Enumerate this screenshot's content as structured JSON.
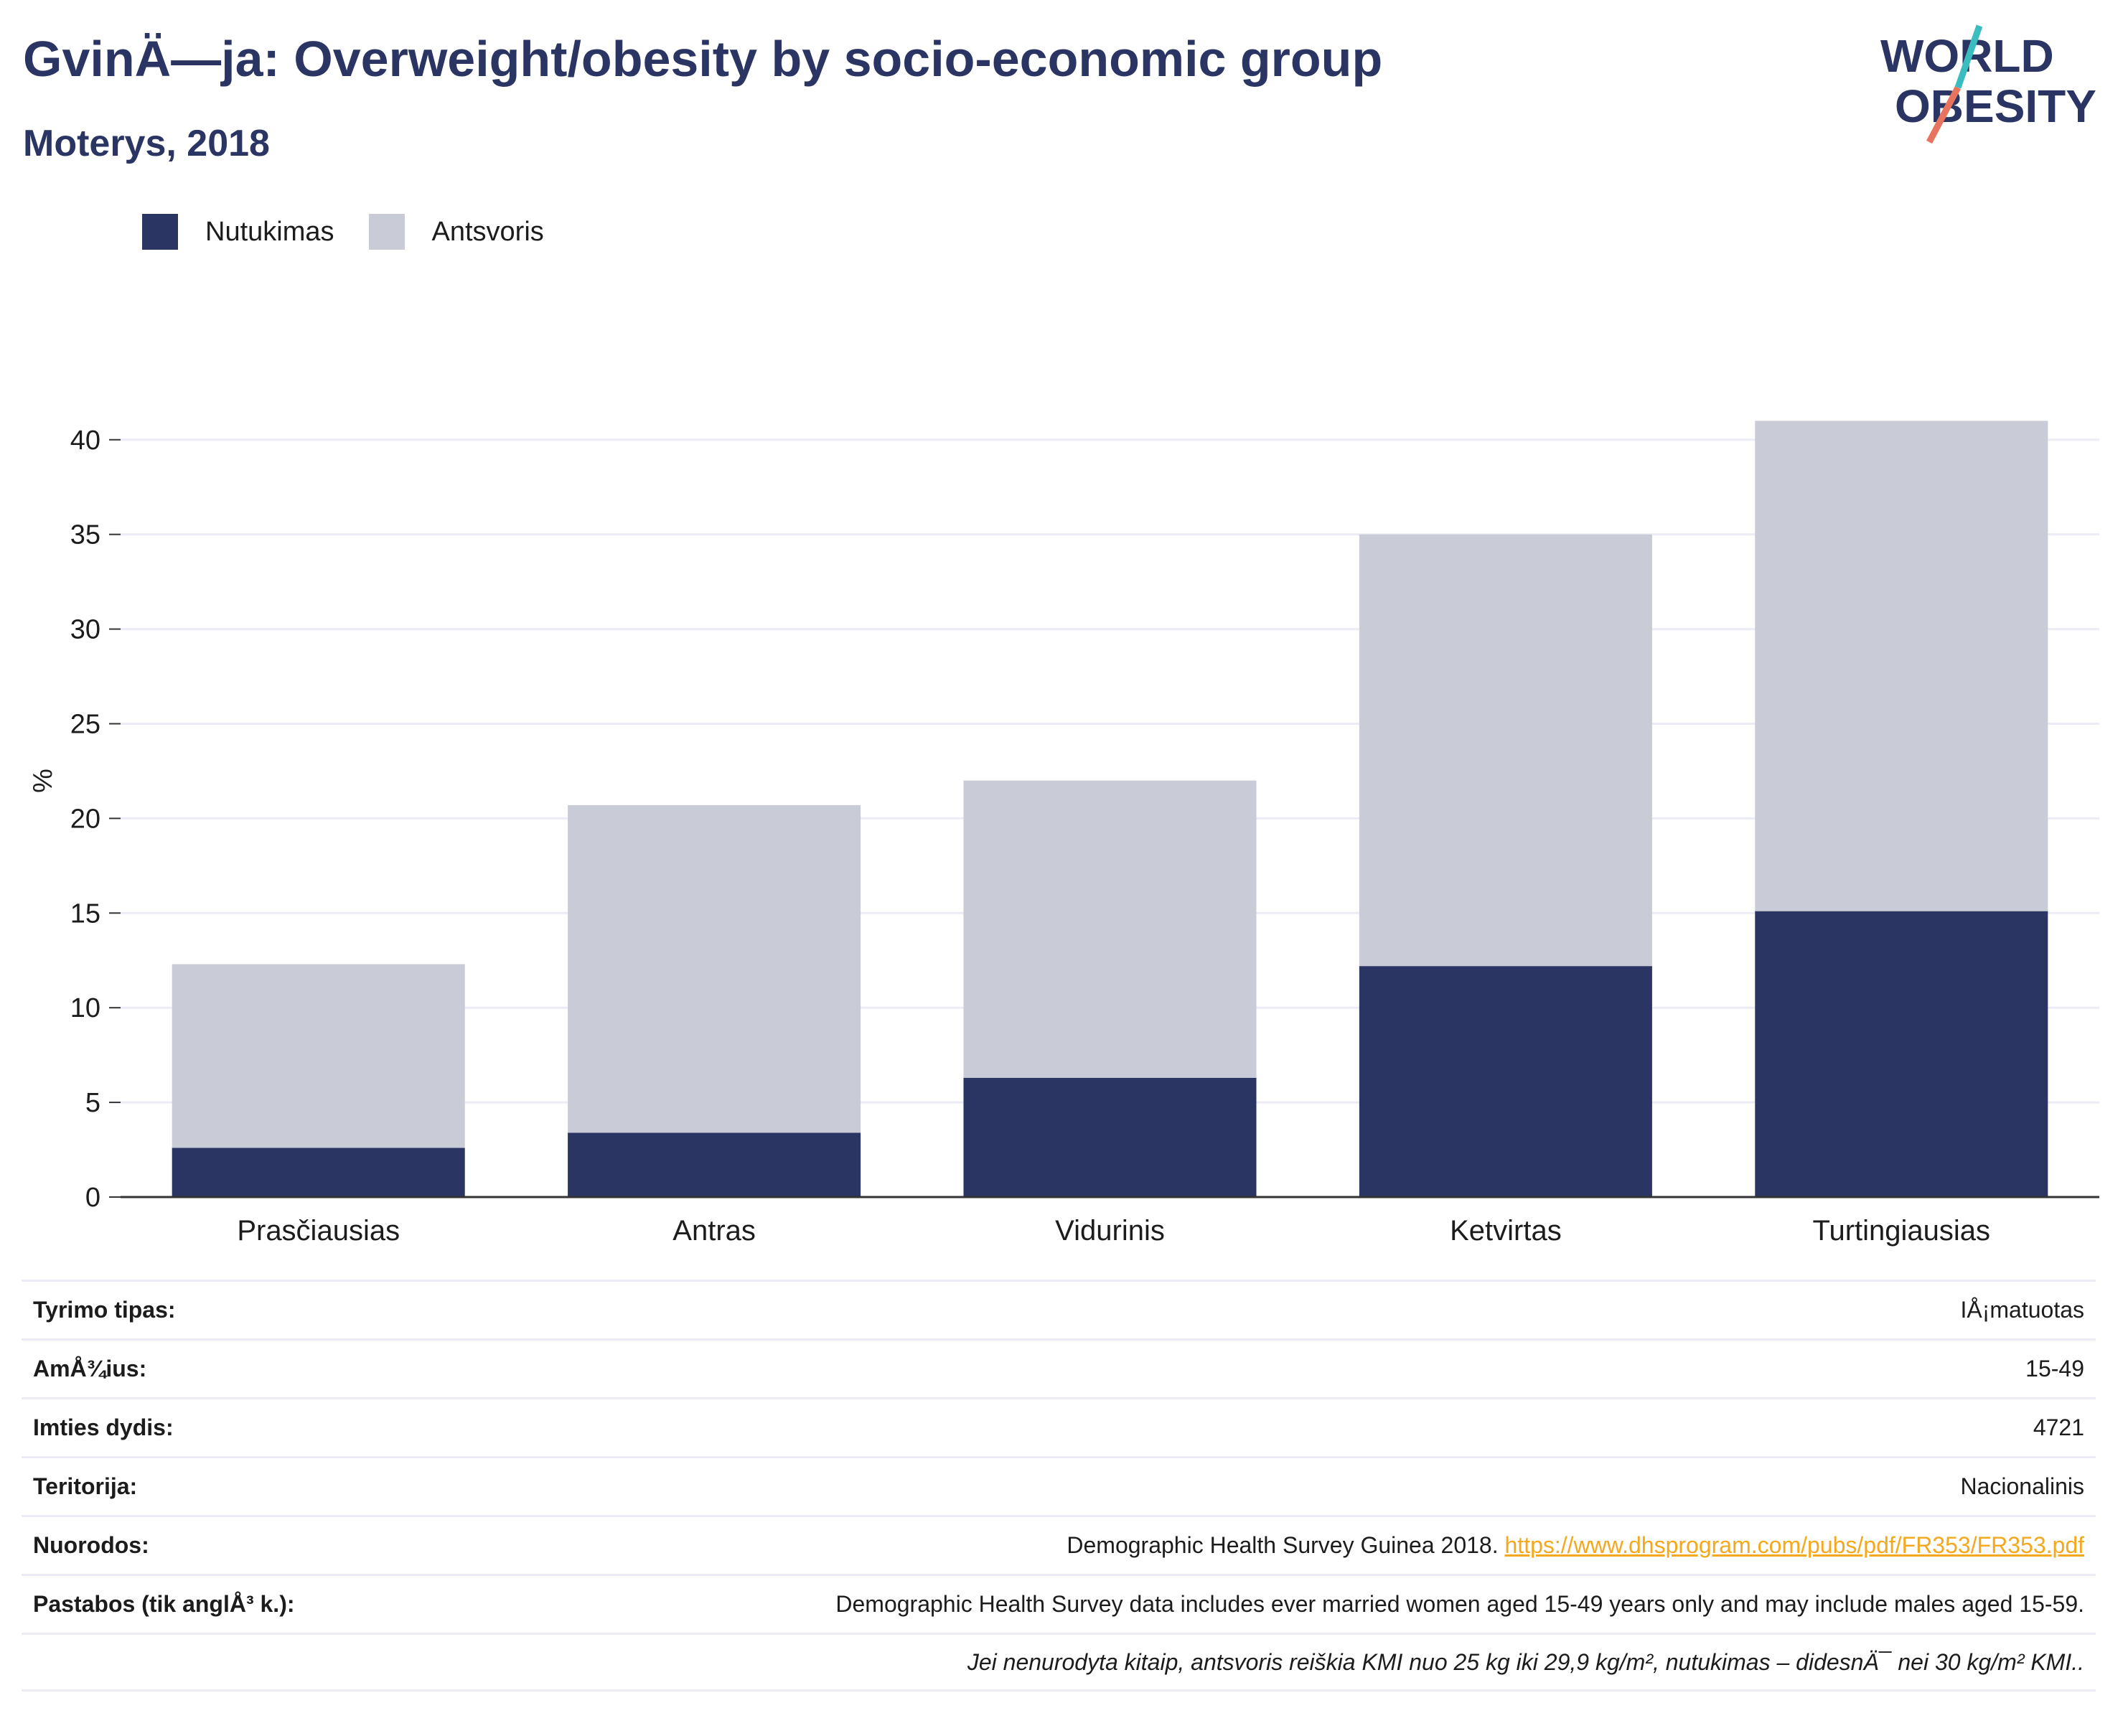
{
  "header": {
    "title": "GvinÄ—ja: Overweight/obesity by socio-economic group",
    "subtitle": "Moterys, 2018"
  },
  "logo": {
    "line1": "WORLD",
    "line2": "OBESITY"
  },
  "colors": {
    "obesity": "#2a3563",
    "overweight": "#c9cbd6",
    "title": "#2a3563",
    "link": "#f4a81d"
  },
  "chart_data": {
    "type": "bar",
    "stacked": true,
    "categories": [
      "Prasčiausias",
      "Antras",
      "Vidurinis",
      "Ketvirtas",
      "Turtingiausias"
    ],
    "series": [
      {
        "name": "Nutukimas",
        "values": [
          2.6,
          3.4,
          6.3,
          12.2,
          15.1
        ]
      },
      {
        "name": "Antsvoris",
        "values": [
          9.7,
          17.3,
          15.7,
          22.8,
          25.9
        ]
      }
    ],
    "totals": [
      12.3,
      20.7,
      22.0,
      35.0,
      41.0
    ],
    "ylabel": "%",
    "ylim": [
      0,
      42
    ],
    "yticks": [
      0,
      5,
      10,
      15,
      20,
      25,
      30,
      35,
      40
    ],
    "grid": true,
    "legend_position": "top-left"
  },
  "meta": {
    "rows": [
      {
        "label": "Tyrimo tipas:",
        "value": "IÅ¡matuotas"
      },
      {
        "label": "AmÅ¾ius:",
        "value": "15-49"
      },
      {
        "label": "Imties dydis:",
        "value": "4721"
      },
      {
        "label": "Teritorija:",
        "value": "Nacionalinis"
      }
    ],
    "references": {
      "label": "Nuorodos:",
      "text": "Demographic Health Survey Guinea 2018.",
      "url": "https://www.dhsprogram.com/pubs/pdf/FR353/FR353.pdf"
    },
    "notes": {
      "label": "Pastabos (tik anglÅ³ k.):",
      "value": "Demographic Health Survey data includes ever married women aged 15-49 years only and may include males aged 15-59."
    },
    "footnote": "Jei nenurodyta kitaip, antsvoris reiškia KMI nuo 25 kg iki 29,9 kg/m², nutukimas – didesnÄ¯ nei 30 kg/m² KMI.."
  }
}
